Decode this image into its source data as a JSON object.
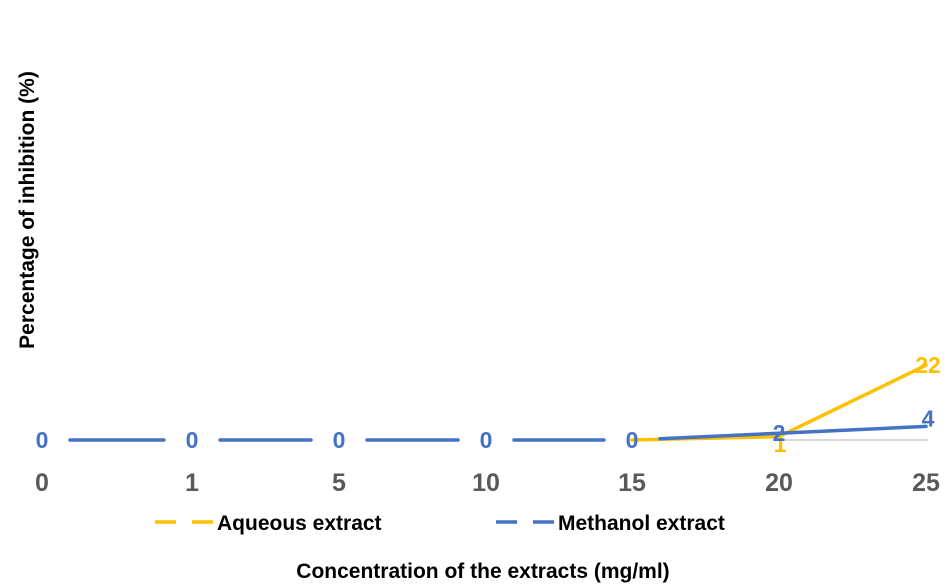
{
  "chart_data": {
    "type": "line",
    "title": "",
    "xlabel": "Concentration of the extracts (mg/ml)",
    "ylabel": "Percentage of inhibition (%)",
    "categories": [
      "0",
      "1",
      "5",
      "10",
      "15",
      "20",
      "25"
    ],
    "series": [
      {
        "name": "Aqueous extract",
        "color": "#FFC000",
        "values": [
          0,
          0,
          0,
          0,
          0,
          1,
          22
        ]
      },
      {
        "name": "Methanol extract",
        "color": "#4472C4",
        "values": [
          0,
          0,
          0,
          0,
          0,
          2,
          4
        ]
      }
    ],
    "ylim": [
      0,
      100
    ],
    "grid": false,
    "legend_position": "bottom"
  }
}
